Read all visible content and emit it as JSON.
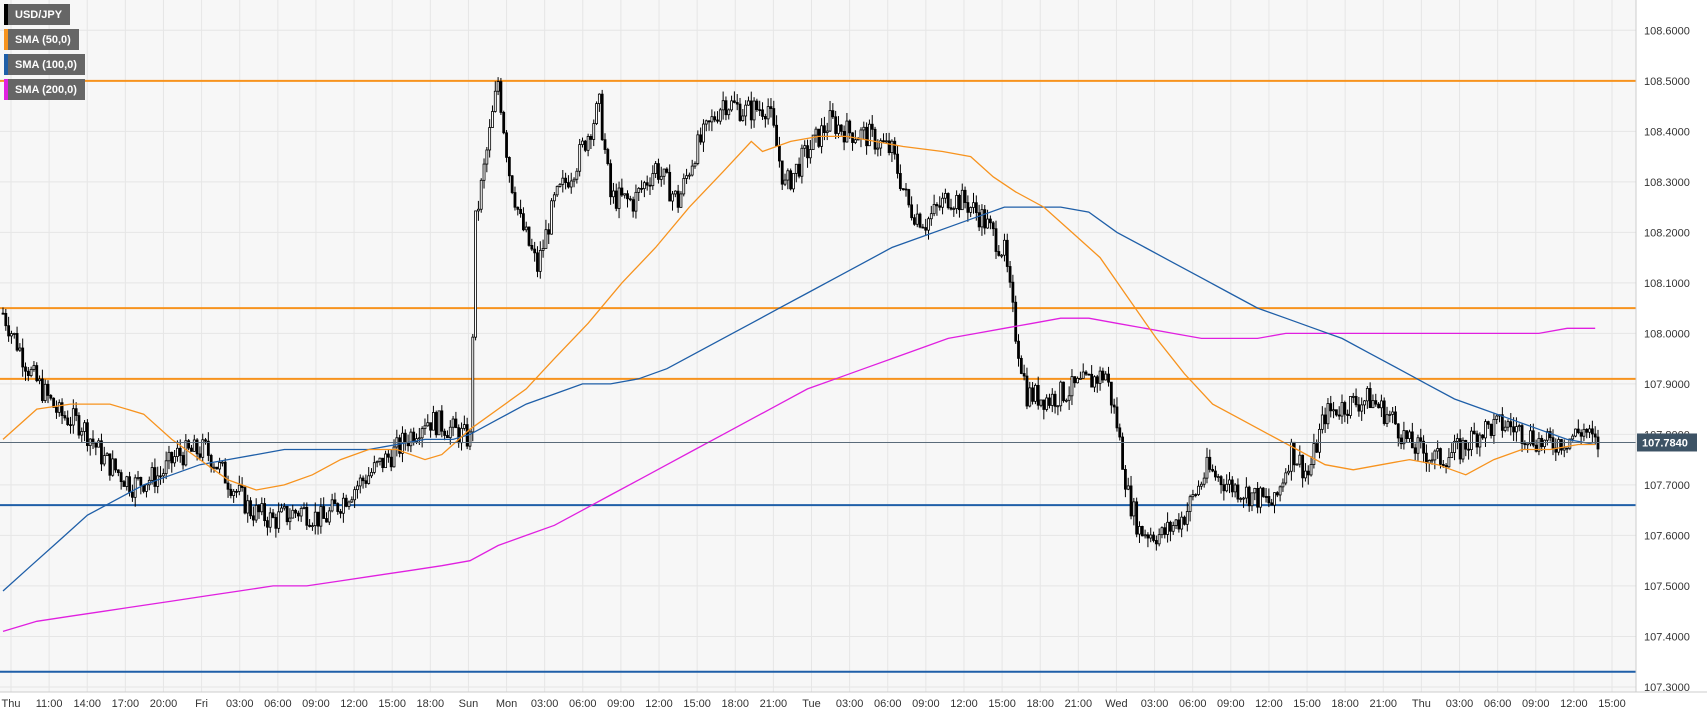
{
  "chart_data": {
    "type": "candlestick",
    "symbol": "USD/JPY",
    "legend": [
      {
        "label": "USD/JPY",
        "color": "#000000"
      },
      {
        "label": "SMA (50,0)",
        "color": "#f7931e"
      },
      {
        "label": "SMA (100,0)",
        "color": "#1f5fa8"
      },
      {
        "label": "SMA (200,0)",
        "color": "#e020e0"
      }
    ],
    "y_ticks": [
      "108.6000",
      "108.5000",
      "108.4000",
      "108.3000",
      "108.2000",
      "108.1000",
      "108.0000",
      "107.9000",
      "107.8000",
      "107.7000",
      "107.6000",
      "107.5000",
      "107.4000",
      "107.3000"
    ],
    "x_ticks": [
      "Thu",
      "11:00",
      "14:00",
      "17:00",
      "20:00",
      "Fri",
      "03:00",
      "06:00",
      "09:00",
      "12:00",
      "15:00",
      "18:00",
      "Sun",
      "Mon",
      "03:00",
      "06:00",
      "09:00",
      "12:00",
      "15:00",
      "18:00",
      "21:00",
      "Tue",
      "03:00",
      "06:00",
      "09:00",
      "12:00",
      "15:00",
      "18:00",
      "21:00",
      "Wed",
      "03:00",
      "06:00",
      "09:00",
      "12:00",
      "15:00",
      "18:00",
      "21:00",
      "Thu",
      "03:00",
      "06:00",
      "09:00",
      "12:00",
      "15:00"
    ],
    "ylim": [
      107.29,
      108.66
    ],
    "current_price": "107.7840",
    "current_price_value": 107.784,
    "horizontal_levels": [
      {
        "value": 108.5,
        "color": "#f7931e"
      },
      {
        "value": 108.05,
        "color": "#f7931e"
      },
      {
        "value": 107.91,
        "color": "#f7931e"
      },
      {
        "value": 107.66,
        "color": "#1f5fa8"
      },
      {
        "value": 107.33,
        "color": "#1f5fa8"
      }
    ],
    "price_waypoints": [
      [
        0,
        108.04
      ],
      [
        10,
        107.92
      ],
      [
        20,
        107.84
      ],
      [
        28,
        107.82
      ],
      [
        36,
        107.75
      ],
      [
        46,
        107.7
      ],
      [
        56,
        107.72
      ],
      [
        62,
        107.76
      ],
      [
        72,
        107.77
      ],
      [
        80,
        107.71
      ],
      [
        88,
        107.65
      ],
      [
        96,
        107.63
      ],
      [
        106,
        107.65
      ],
      [
        114,
        107.63
      ],
      [
        124,
        107.69
      ],
      [
        132,
        107.73
      ],
      [
        140,
        107.77
      ],
      [
        150,
        107.83
      ],
      [
        156,
        107.82
      ],
      [
        166,
        107.79
      ],
      [
        168,
        108.22
      ],
      [
        176,
        108.5
      ],
      [
        180,
        108.32
      ],
      [
        184,
        108.22
      ],
      [
        190,
        108.13
      ],
      [
        196,
        108.26
      ],
      [
        204,
        108.34
      ],
      [
        212,
        108.45
      ],
      [
        216,
        108.27
      ],
      [
        224,
        108.26
      ],
      [
        232,
        108.33
      ],
      [
        240,
        108.26
      ],
      [
        246,
        108.36
      ],
      [
        256,
        108.46
      ],
      [
        264,
        108.44
      ],
      [
        272,
        108.45
      ],
      [
        278,
        108.29
      ],
      [
        286,
        108.36
      ],
      [
        294,
        108.42
      ],
      [
        300,
        108.4
      ],
      [
        308,
        108.39
      ],
      [
        316,
        108.36
      ],
      [
        322,
        108.25
      ],
      [
        328,
        108.22
      ],
      [
        336,
        108.27
      ],
      [
        342,
        108.26
      ],
      [
        348,
        108.23
      ],
      [
        356,
        108.16
      ],
      [
        360,
        108.0
      ],
      [
        364,
        107.88
      ],
      [
        372,
        107.87
      ],
      [
        380,
        107.89
      ],
      [
        392,
        107.92
      ],
      [
        396,
        107.82
      ],
      [
        400,
        107.68
      ],
      [
        404,
        107.61
      ],
      [
        412,
        107.6
      ],
      [
        420,
        107.64
      ],
      [
        428,
        107.73
      ],
      [
        436,
        107.7
      ],
      [
        444,
        107.68
      ],
      [
        452,
        107.66
      ],
      [
        458,
        107.77
      ],
      [
        464,
        107.72
      ],
      [
        470,
        107.84
      ],
      [
        478,
        107.86
      ],
      [
        486,
        107.87
      ],
      [
        494,
        107.83
      ],
      [
        500,
        107.78
      ],
      [
        510,
        107.75
      ],
      [
        518,
        107.77
      ],
      [
        526,
        107.81
      ],
      [
        534,
        107.82
      ],
      [
        542,
        107.8
      ],
      [
        548,
        107.78
      ],
      [
        556,
        107.79
      ],
      [
        562,
        107.81
      ],
      [
        566,
        107.78
      ]
    ],
    "sma50": [
      [
        0,
        107.79
      ],
      [
        12,
        107.85
      ],
      [
        24,
        107.86
      ],
      [
        38,
        107.86
      ],
      [
        50,
        107.84
      ],
      [
        60,
        107.79
      ],
      [
        70,
        107.75
      ],
      [
        80,
        107.71
      ],
      [
        90,
        107.69
      ],
      [
        100,
        107.7
      ],
      [
        110,
        107.72
      ],
      [
        120,
        107.75
      ],
      [
        130,
        107.77
      ],
      [
        140,
        107.77
      ],
      [
        150,
        107.75
      ],
      [
        156,
        107.76
      ],
      [
        160,
        107.78
      ],
      [
        166,
        107.81
      ],
      [
        176,
        107.85
      ],
      [
        186,
        107.89
      ],
      [
        196,
        107.95
      ],
      [
        208,
        108.02
      ],
      [
        220,
        108.1
      ],
      [
        232,
        108.17
      ],
      [
        244,
        108.25
      ],
      [
        256,
        108.32
      ],
      [
        266,
        108.38
      ],
      [
        270,
        108.36
      ],
      [
        280,
        108.38
      ],
      [
        290,
        108.39
      ],
      [
        300,
        108.39
      ],
      [
        310,
        108.38
      ],
      [
        320,
        108.37
      ],
      [
        334,
        108.36
      ],
      [
        344,
        108.35
      ],
      [
        352,
        108.31
      ],
      [
        360,
        108.28
      ],
      [
        370,
        108.25
      ],
      [
        380,
        108.2
      ],
      [
        390,
        108.15
      ],
      [
        400,
        108.07
      ],
      [
        410,
        107.99
      ],
      [
        420,
        107.92
      ],
      [
        430,
        107.86
      ],
      [
        440,
        107.83
      ],
      [
        450,
        107.8
      ],
      [
        460,
        107.77
      ],
      [
        470,
        107.74
      ],
      [
        480,
        107.73
      ],
      [
        490,
        107.74
      ],
      [
        500,
        107.75
      ],
      [
        510,
        107.74
      ],
      [
        520,
        107.72
      ],
      [
        530,
        107.75
      ],
      [
        540,
        107.77
      ],
      [
        550,
        107.77
      ],
      [
        560,
        107.78
      ],
      [
        566,
        107.78
      ]
    ],
    "sma100": [
      [
        0,
        107.49
      ],
      [
        10,
        107.54
      ],
      [
        20,
        107.59
      ],
      [
        30,
        107.64
      ],
      [
        40,
        107.67
      ],
      [
        50,
        107.7
      ],
      [
        60,
        107.72
      ],
      [
        70,
        107.74
      ],
      [
        80,
        107.75
      ],
      [
        90,
        107.76
      ],
      [
        100,
        107.77
      ],
      [
        110,
        107.77
      ],
      [
        120,
        107.77
      ],
      [
        130,
        107.77
      ],
      [
        140,
        107.78
      ],
      [
        150,
        107.79
      ],
      [
        160,
        107.79
      ],
      [
        166,
        107.8
      ],
      [
        176,
        107.83
      ],
      [
        186,
        107.86
      ],
      [
        196,
        107.88
      ],
      [
        206,
        107.9
      ],
      [
        216,
        107.9
      ],
      [
        226,
        107.91
      ],
      [
        236,
        107.93
      ],
      [
        246,
        107.96
      ],
      [
        256,
        107.99
      ],
      [
        266,
        108.02
      ],
      [
        276,
        108.05
      ],
      [
        286,
        108.08
      ],
      [
        296,
        108.11
      ],
      [
        306,
        108.14
      ],
      [
        316,
        108.17
      ],
      [
        326,
        108.19
      ],
      [
        336,
        108.21
      ],
      [
        346,
        108.23
      ],
      [
        356,
        108.25
      ],
      [
        366,
        108.25
      ],
      [
        376,
        108.25
      ],
      [
        386,
        108.24
      ],
      [
        396,
        108.2
      ],
      [
        406,
        108.17
      ],
      [
        416,
        108.14
      ],
      [
        426,
        108.11
      ],
      [
        436,
        108.08
      ],
      [
        446,
        108.05
      ],
      [
        456,
        108.03
      ],
      [
        466,
        108.01
      ],
      [
        476,
        107.99
      ],
      [
        486,
        107.96
      ],
      [
        496,
        107.93
      ],
      [
        506,
        107.9
      ],
      [
        516,
        107.87
      ],
      [
        526,
        107.85
      ],
      [
        536,
        107.83
      ],
      [
        546,
        107.81
      ],
      [
        556,
        107.79
      ],
      [
        566,
        107.78
      ]
    ],
    "sma200": [
      [
        0,
        107.41
      ],
      [
        12,
        107.43
      ],
      [
        24,
        107.44
      ],
      [
        36,
        107.45
      ],
      [
        48,
        107.46
      ],
      [
        60,
        107.47
      ],
      [
        72,
        107.48
      ],
      [
        84,
        107.49
      ],
      [
        96,
        107.5
      ],
      [
        108,
        107.5
      ],
      [
        120,
        107.51
      ],
      [
        132,
        107.52
      ],
      [
        144,
        107.53
      ],
      [
        156,
        107.54
      ],
      [
        166,
        107.55
      ],
      [
        176,
        107.58
      ],
      [
        186,
        107.6
      ],
      [
        196,
        107.62
      ],
      [
        206,
        107.65
      ],
      [
        216,
        107.68
      ],
      [
        226,
        107.71
      ],
      [
        236,
        107.74
      ],
      [
        246,
        107.77
      ],
      [
        256,
        107.8
      ],
      [
        266,
        107.83
      ],
      [
        276,
        107.86
      ],
      [
        286,
        107.89
      ],
      [
        296,
        107.91
      ],
      [
        306,
        107.93
      ],
      [
        316,
        107.95
      ],
      [
        326,
        107.97
      ],
      [
        336,
        107.99
      ],
      [
        346,
        108.0
      ],
      [
        356,
        108.01
      ],
      [
        366,
        108.02
      ],
      [
        376,
        108.03
      ],
      [
        386,
        108.03
      ],
      [
        396,
        108.02
      ],
      [
        406,
        108.01
      ],
      [
        416,
        108.0
      ],
      [
        426,
        107.99
      ],
      [
        436,
        107.99
      ],
      [
        446,
        107.99
      ],
      [
        456,
        108.0
      ],
      [
        466,
        108.0
      ],
      [
        476,
        108.0
      ],
      [
        486,
        108.0
      ],
      [
        496,
        108.0
      ],
      [
        506,
        108.0
      ],
      [
        516,
        108.0
      ],
      [
        526,
        108.0
      ],
      [
        536,
        108.0
      ],
      [
        546,
        108.0
      ],
      [
        556,
        108.01
      ],
      [
        566,
        108.01
      ]
    ]
  }
}
